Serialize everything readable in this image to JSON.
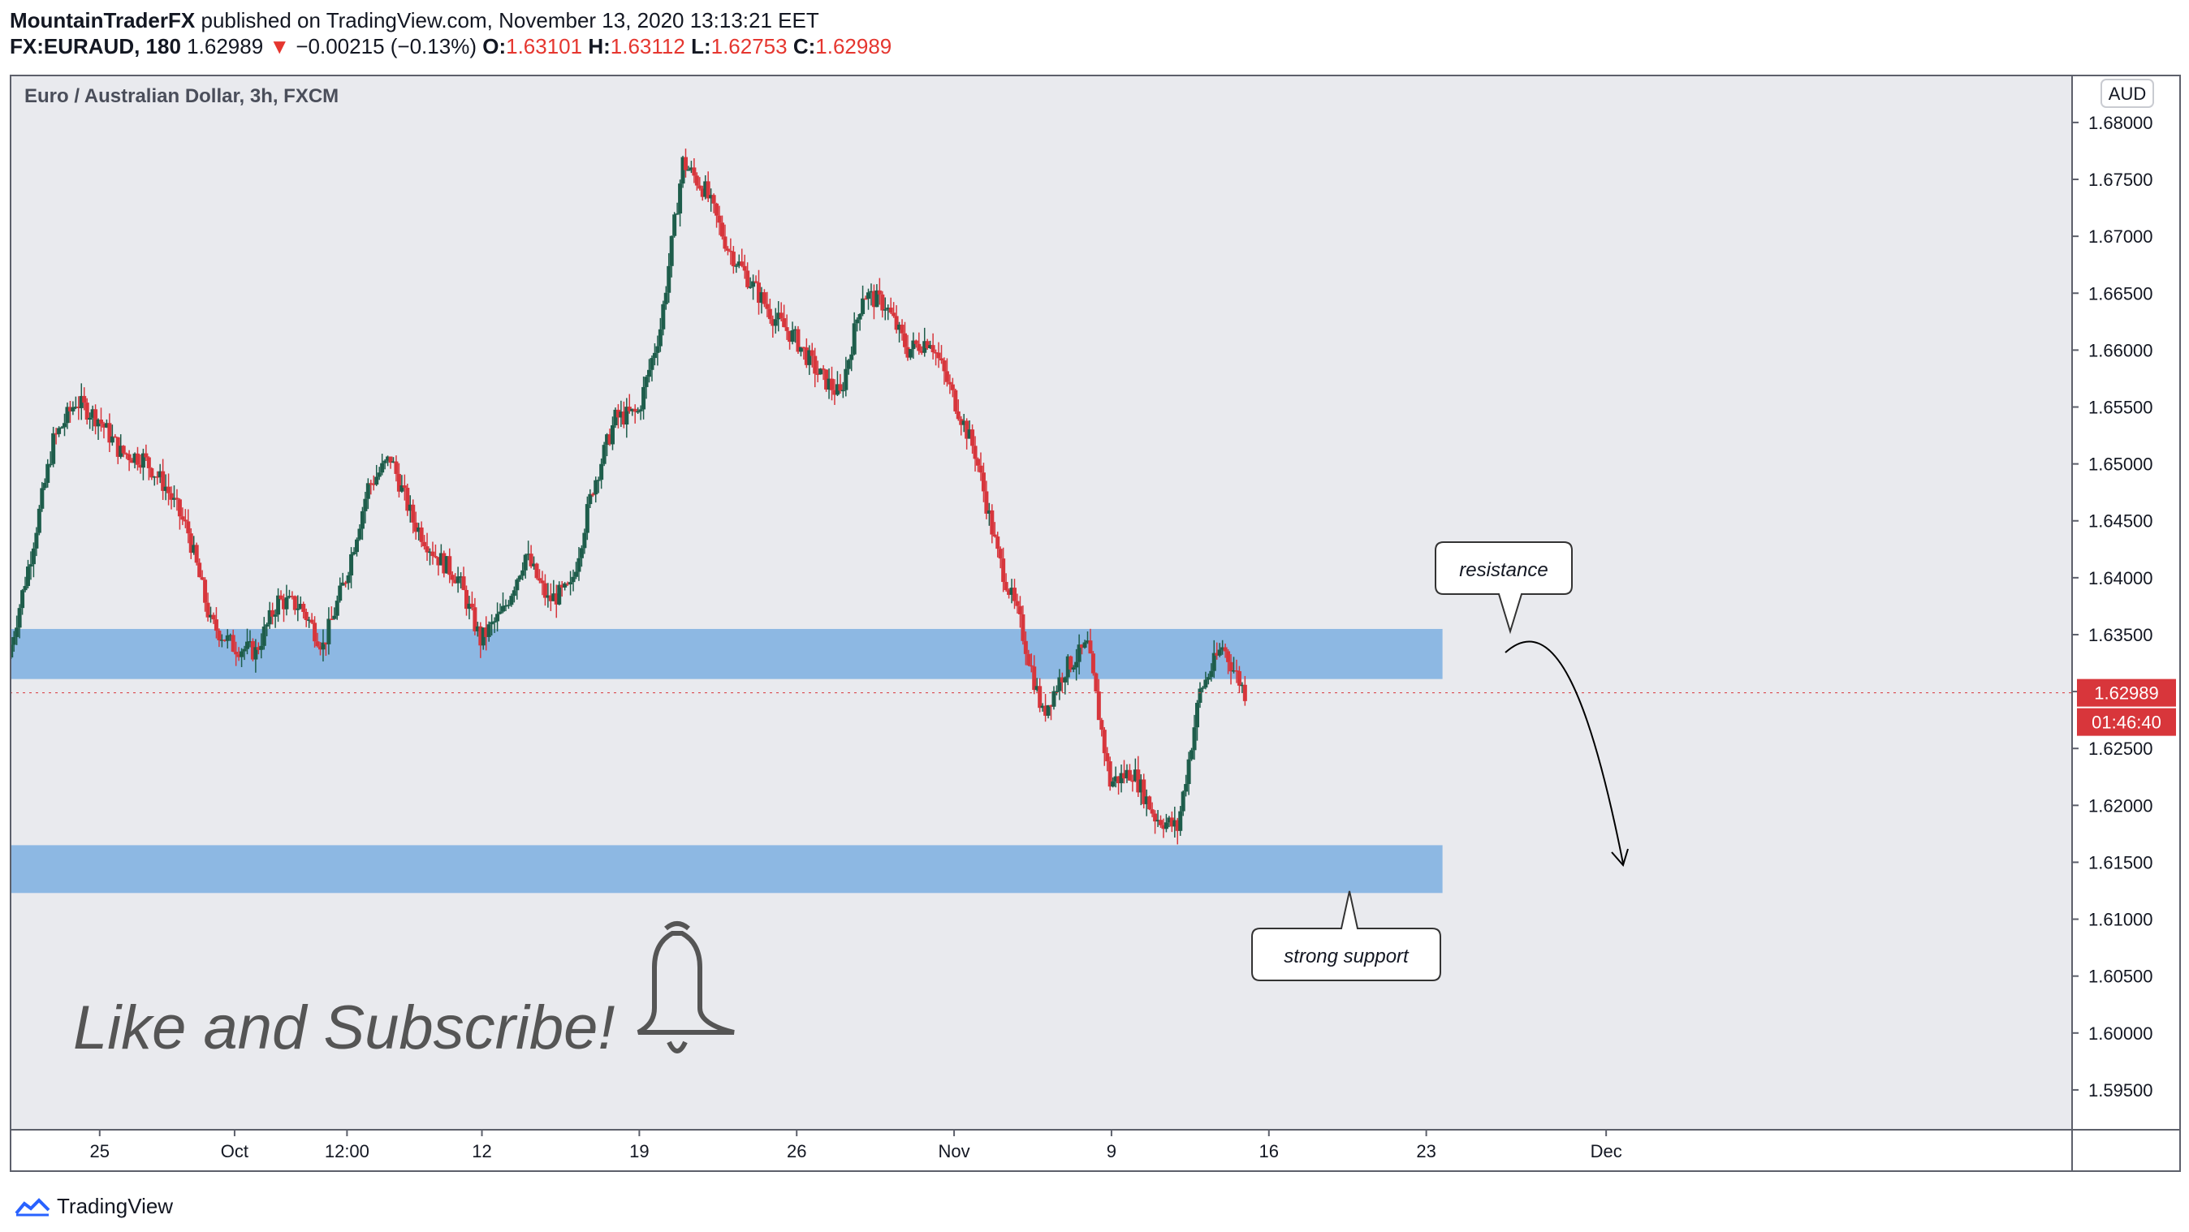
{
  "header": {
    "author": "MountainTraderFX",
    "published_text": "published on TradingView.com, November 13, 2020 13:13:21 EET",
    "symbol": "FX:EURAUD, 180",
    "last_price": "1.62989",
    "change_arrow": "▼",
    "change": "−0.00215 (−0.13%)",
    "open_label": "O:",
    "open": "1.63101",
    "high_label": "H:",
    "high": "1.63112",
    "low_label": "L:",
    "low": "1.62753",
    "close_label": "C:",
    "close": "1.62989"
  },
  "chart_data": {
    "type": "candlestick",
    "title": "Euro / Australian Dollar, 3h, FXCM",
    "currency": "AUD",
    "ylim": [
      1.5915,
      1.6842
    ],
    "y_ticks": [
      "1.68000",
      "1.67500",
      "1.67000",
      "1.66500",
      "1.66000",
      "1.65500",
      "1.65000",
      "1.64500",
      "1.64000",
      "1.63500",
      "1.63000",
      "1.62500",
      "1.62000",
      "1.61500",
      "1.61000",
      "1.60500",
      "1.60000",
      "1.59500"
    ],
    "x_ticks": [
      "25",
      "Oct",
      "12:00",
      "12",
      "19",
      "26",
      "Nov",
      "9",
      "16",
      "23",
      "Dec"
    ],
    "price_label": "1.62989",
    "countdown": "01:46:40",
    "close_path": [
      {
        "date": "2020-09-21",
        "close": 1.633
      },
      {
        "date": "2020-09-22",
        "close": 1.642
      },
      {
        "date": "2020-09-23",
        "close": 1.652
      },
      {
        "date": "2020-09-24",
        "close": 1.6555
      },
      {
        "date": "2020-09-25",
        "close": 1.654
      },
      {
        "date": "2020-09-26",
        "close": 1.651
      },
      {
        "date": "2020-09-27",
        "close": 1.6505
      },
      {
        "date": "2020-09-28",
        "close": 1.648
      },
      {
        "date": "2020-09-29",
        "close": 1.644
      },
      {
        "date": "2020-09-30",
        "close": 1.636
      },
      {
        "date": "2020-10-01",
        "close": 1.634
      },
      {
        "date": "2020-10-02",
        "close": 1.6335
      },
      {
        "date": "2020-10-03",
        "close": 1.638
      },
      {
        "date": "2020-10-04",
        "close": 1.6375
      },
      {
        "date": "2020-10-05",
        "close": 1.634
      },
      {
        "date": "2020-10-06",
        "close": 1.64
      },
      {
        "date": "2020-10-07",
        "close": 1.648
      },
      {
        "date": "2020-10-08",
        "close": 1.6505
      },
      {
        "date": "2020-10-09",
        "close": 1.645
      },
      {
        "date": "2020-10-10",
        "close": 1.642
      },
      {
        "date": "2020-10-11",
        "close": 1.64
      },
      {
        "date": "2020-10-12",
        "close": 1.6345
      },
      {
        "date": "2020-10-13",
        "close": 1.637
      },
      {
        "date": "2020-10-14",
        "close": 1.642
      },
      {
        "date": "2020-10-15",
        "close": 1.638
      },
      {
        "date": "2020-10-16",
        "close": 1.639
      },
      {
        "date": "2020-10-17",
        "close": 1.648
      },
      {
        "date": "2020-10-18",
        "close": 1.654
      },
      {
        "date": "2020-10-19",
        "close": 1.6545
      },
      {
        "date": "2020-10-20",
        "close": 1.662
      },
      {
        "date": "2020-10-21",
        "close": 1.6765
      },
      {
        "date": "2020-10-22",
        "close": 1.674
      },
      {
        "date": "2020-10-23",
        "close": 1.669
      },
      {
        "date": "2020-10-24",
        "close": 1.666
      },
      {
        "date": "2020-10-25",
        "close": 1.663
      },
      {
        "date": "2020-10-26",
        "close": 1.661
      },
      {
        "date": "2020-10-27",
        "close": 1.658
      },
      {
        "date": "2020-10-28",
        "close": 1.656
      },
      {
        "date": "2020-10-29",
        "close": 1.665
      },
      {
        "date": "2020-10-30",
        "close": 1.664
      },
      {
        "date": "2020-10-31",
        "close": 1.66
      },
      {
        "date": "2020-11-01",
        "close": 1.661
      },
      {
        "date": "2020-11-02",
        "close": 1.656
      },
      {
        "date": "2020-11-03",
        "close": 1.651
      },
      {
        "date": "2020-11-04",
        "close": 1.642
      },
      {
        "date": "2020-11-05",
        "close": 1.636
      },
      {
        "date": "2020-11-06",
        "close": 1.628
      },
      {
        "date": "2020-11-07",
        "close": 1.632
      },
      {
        "date": "2020-11-08",
        "close": 1.634
      },
      {
        "date": "2020-11-09",
        "close": 1.622
      },
      {
        "date": "2020-11-10",
        "close": 1.623
      },
      {
        "date": "2020-11-11",
        "close": 1.619
      },
      {
        "date": "2020-11-12",
        "close": 1.618
      },
      {
        "date": "2020-11-13",
        "close": 1.63
      },
      {
        "date": "2020-11-14",
        "close": 1.634
      },
      {
        "date": "2020-11-15",
        "close": 1.6299
      }
    ],
    "zones": [
      {
        "from": 1.6311,
        "to": 1.6355
      },
      {
        "from": 1.6123,
        "to": 1.6165
      }
    ],
    "annotations": [
      {
        "text": "resistance"
      },
      {
        "text": "strong support"
      }
    ]
  },
  "overlay": {
    "cta": "Like and Subscribe!"
  },
  "footer": {
    "brand": "TradingView"
  },
  "colors": {
    "up": "#1e5d4b",
    "down": "#d7363c",
    "zone": "#8db8e3",
    "plot_bg": "#e9eaee",
    "price_tag": "#d8363b"
  }
}
